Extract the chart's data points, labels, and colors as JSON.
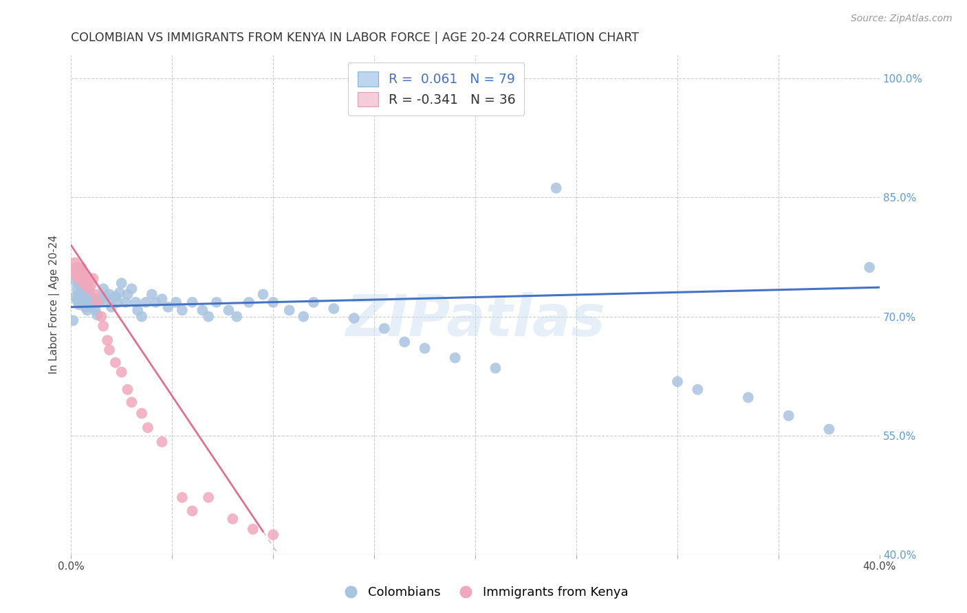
{
  "title": "COLOMBIAN VS IMMIGRANTS FROM KENYA IN LABOR FORCE | AGE 20-24 CORRELATION CHART",
  "source": "Source: ZipAtlas.com",
  "ylabel": "In Labor Force | Age 20-24",
  "xlim": [
    0.0,
    0.4
  ],
  "ylim": [
    0.4,
    1.03
  ],
  "xticks": [
    0.0,
    0.05,
    0.1,
    0.15,
    0.2,
    0.25,
    0.3,
    0.35,
    0.4
  ],
  "yticks": [
    0.4,
    0.55,
    0.7,
    0.85,
    1.0
  ],
  "ytick_labels": [
    "40.0%",
    "55.0%",
    "70.0%",
    "85.0%",
    "100.0%"
  ],
  "blue_R": 0.061,
  "blue_N": 79,
  "pink_R": -0.341,
  "pink_N": 36,
  "blue_color": "#a8c4e0",
  "pink_color": "#f0a8bc",
  "blue_line_color": "#4472c4",
  "pink_line_color": "#e07090",
  "watermark": "ZIPatlas",
  "blue_x": [
    0.001,
    0.002,
    0.002,
    0.003,
    0.003,
    0.003,
    0.004,
    0.004,
    0.004,
    0.005,
    0.005,
    0.005,
    0.005,
    0.006,
    0.006,
    0.006,
    0.007,
    0.007,
    0.007,
    0.008,
    0.008,
    0.008,
    0.009,
    0.009,
    0.01,
    0.01,
    0.011,
    0.012,
    0.013,
    0.014,
    0.015,
    0.016,
    0.017,
    0.018,
    0.019,
    0.02,
    0.022,
    0.023,
    0.024,
    0.025,
    0.027,
    0.028,
    0.03,
    0.032,
    0.033,
    0.035,
    0.037,
    0.04,
    0.042,
    0.045,
    0.048,
    0.052,
    0.055,
    0.06,
    0.065,
    0.068,
    0.072,
    0.078,
    0.082,
    0.088,
    0.095,
    0.1,
    0.108,
    0.115,
    0.12,
    0.13,
    0.14,
    0.155,
    0.165,
    0.175,
    0.19,
    0.21,
    0.24,
    0.3,
    0.31,
    0.335,
    0.355,
    0.375,
    0.395
  ],
  "blue_y": [
    0.695,
    0.725,
    0.745,
    0.72,
    0.735,
    0.75,
    0.715,
    0.728,
    0.742,
    0.72,
    0.735,
    0.748,
    0.76,
    0.718,
    0.73,
    0.745,
    0.712,
    0.725,
    0.738,
    0.708,
    0.722,
    0.735,
    0.718,
    0.73,
    0.712,
    0.725,
    0.718,
    0.708,
    0.702,
    0.718,
    0.725,
    0.735,
    0.725,
    0.718,
    0.728,
    0.712,
    0.725,
    0.718,
    0.73,
    0.742,
    0.718,
    0.728,
    0.735,
    0.718,
    0.708,
    0.7,
    0.718,
    0.728,
    0.718,
    0.722,
    0.712,
    0.718,
    0.708,
    0.718,
    0.708,
    0.7,
    0.718,
    0.708,
    0.7,
    0.718,
    0.728,
    0.718,
    0.708,
    0.7,
    0.718,
    0.71,
    0.698,
    0.685,
    0.668,
    0.66,
    0.648,
    0.635,
    0.862,
    0.618,
    0.608,
    0.598,
    0.575,
    0.558,
    0.762
  ],
  "pink_x": [
    0.001,
    0.002,
    0.002,
    0.003,
    0.003,
    0.004,
    0.004,
    0.005,
    0.005,
    0.006,
    0.006,
    0.007,
    0.008,
    0.008,
    0.009,
    0.01,
    0.011,
    0.012,
    0.013,
    0.015,
    0.016,
    0.018,
    0.019,
    0.022,
    0.025,
    0.028,
    0.03,
    0.035,
    0.038,
    0.045,
    0.055,
    0.06,
    0.068,
    0.08,
    0.09,
    0.1
  ],
  "pink_y": [
    0.76,
    0.755,
    0.768,
    0.75,
    0.762,
    0.748,
    0.76,
    0.748,
    0.762,
    0.742,
    0.755,
    0.748,
    0.738,
    0.75,
    0.735,
    0.74,
    0.748,
    0.728,
    0.718,
    0.7,
    0.688,
    0.67,
    0.658,
    0.642,
    0.63,
    0.608,
    0.592,
    0.578,
    0.56,
    0.542,
    0.472,
    0.455,
    0.472,
    0.445,
    0.432,
    0.425
  ],
  "blue_intercept": 0.712,
  "blue_slope": 0.062,
  "pink_intercept": 0.79,
  "pink_slope": -3.8
}
